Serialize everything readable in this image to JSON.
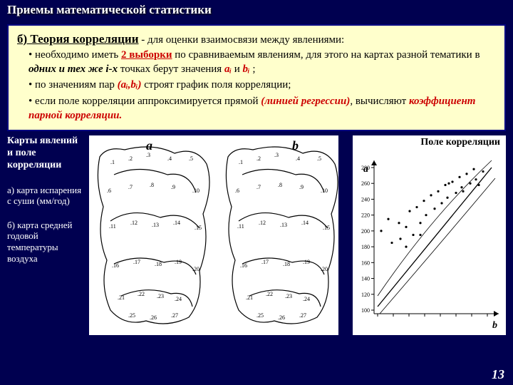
{
  "header": "Приемы математической статистики",
  "section": {
    "prefix": "б)  Теория  корреляции",
    "continuation": "  -  для  оценки  взаимосвязи  между явлениями:",
    "bullets": [
      {
        "pre": "необходимо иметь ",
        "hl": "2 выборки",
        "post": " по сравниваемым явлениям, для этого на картах разной тематики в ",
        "it1": "одних и тех же i-х",
        "post2": " точках берут значения ",
        "ai": "aᵢ",
        "and": " и ",
        "bi": "bᵢ",
        "end": " ;"
      },
      {
        "pre": "по значениям пар ",
        "pair": "(aᵢ,bᵢ)",
        "post": " строят график поля корреляции;"
      },
      {
        "pre": "если поле корреляции аппроксимируется прямой ",
        "hl": "(линией регрессии)",
        "post": ", вычисляют ",
        "hl2": "коэффициент парной корреляции."
      }
    ]
  },
  "leftLabels": {
    "title": "Карты явлений и поле корреляции",
    "a": "а) карта испарения с суши (мм/год)",
    "b": "б) карта средней годовой температуры воздуха"
  },
  "figure": {
    "labelA": "a",
    "labelB": "b",
    "scatterTitle": "Поле корреляции",
    "axisA": "a",
    "axisB": "b",
    "yticks": [
      "280",
      "260",
      "240",
      "220",
      "200",
      "180",
      "160",
      "140",
      "120",
      "100"
    ],
    "scatter_points": [
      [
        45,
        200
      ],
      [
        55,
        215
      ],
      [
        60,
        185
      ],
      [
        70,
        210
      ],
      [
        72,
        190
      ],
      [
        80,
        205
      ],
      [
        85,
        225
      ],
      [
        90,
        195
      ],
      [
        95,
        230
      ],
      [
        100,
        210
      ],
      [
        105,
        238
      ],
      [
        108,
        220
      ],
      [
        115,
        245
      ],
      [
        120,
        228
      ],
      [
        125,
        250
      ],
      [
        130,
        235
      ],
      [
        135,
        258
      ],
      [
        138,
        242
      ],
      [
        145,
        262
      ],
      [
        150,
        248
      ],
      [
        155,
        268
      ],
      [
        158,
        255
      ],
      [
        165,
        272
      ],
      [
        170,
        260
      ],
      [
        175,
        278
      ],
      [
        178,
        265
      ],
      [
        182,
        258
      ],
      [
        188,
        275
      ],
      [
        80,
        180
      ],
      [
        100,
        195
      ],
      [
        140,
        260
      ],
      [
        160,
        250
      ]
    ],
    "point_color": "#000000",
    "bg": "#ffffff",
    "line_color": "#000000"
  },
  "pageNumber": "13"
}
